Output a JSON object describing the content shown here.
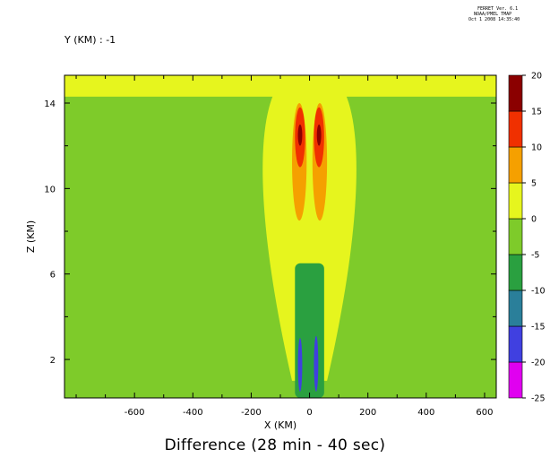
{
  "header": {
    "line1": "FERRET Ver. 6.1",
    "line2": "NOAA/PMEL TMAP",
    "line3": "Oct  1 2008 14:35:40"
  },
  "slice_label": "Y (KM) : -1",
  "title": "Difference (28 min - 40 sec)",
  "chart_data": {
    "type": "heatmap",
    "title": "Difference (28 min - 40 sec)",
    "xlabel": "X (KM)",
    "ylabel": "Z (KM)",
    "xlim": [
      -840,
      640
    ],
    "ylim": [
      0.2,
      15.3
    ],
    "x_ticks": [
      -600,
      -400,
      -200,
      0,
      200,
      400,
      600
    ],
    "x_tick_labels": [
      "-600",
      "-400",
      "-200",
      "0",
      "200",
      "400",
      "600"
    ],
    "y_ticks": [
      2,
      6,
      10,
      14
    ],
    "y_tick_labels": [
      "2",
      "6",
      "10",
      "14"
    ],
    "colorbar": {
      "levels": [
        -25,
        -20,
        -15,
        -10,
        -5,
        0,
        5,
        10,
        15,
        20
      ],
      "labels": [
        "-25",
        "-20",
        "-15",
        "-10",
        "-5",
        "0",
        "5",
        "10",
        "15",
        "20"
      ],
      "colors": [
        "#e000f0",
        "#4040e0",
        "#2a7f9a",
        "#2aa040",
        "#7ecb2a",
        "#e6f51e",
        "#f5a000",
        "#f03000",
        "#8b0000"
      ]
    },
    "background_value_range": [
      -5,
      0
    ],
    "features": [
      {
        "name": "upper yellow band",
        "value_range": [
          0,
          5
        ],
        "x": [
          -840,
          640
        ],
        "z": [
          14.3,
          15.3
        ]
      },
      {
        "name": "central plume",
        "value_range": [
          0,
          5
        ],
        "x": [
          -200,
          200
        ],
        "z": [
          1,
          15.3
        ]
      },
      {
        "name": "orange core left",
        "value_range": [
          5,
          10
        ],
        "x": [
          -60,
          -10
        ],
        "z": [
          8.5,
          14
        ]
      },
      {
        "name": "orange core right",
        "value_range": [
          5,
          10
        ],
        "x": [
          10,
          60
        ],
        "z": [
          8.5,
          14
        ]
      },
      {
        "name": "red core left",
        "value_range": [
          10,
          15
        ],
        "x": [
          -50,
          -15
        ],
        "z": [
          11,
          13.8
        ]
      },
      {
        "name": "red core right",
        "value_range": [
          10,
          15
        ],
        "x": [
          15,
          50
        ],
        "z": [
          11,
          13.8
        ]
      },
      {
        "name": "max left",
        "value_range": [
          15,
          20
        ],
        "x": [
          -40,
          -25
        ],
        "z": [
          12,
          13
        ]
      },
      {
        "name": "max right",
        "value_range": [
          15,
          20
        ],
        "x": [
          25,
          40
        ],
        "z": [
          12,
          13
        ]
      },
      {
        "name": "lower column",
        "value_range": [
          -10,
          -5
        ],
        "x": [
          -50,
          50
        ],
        "z": [
          0.2,
          6.5
        ]
      },
      {
        "name": "blue core left",
        "value_range": [
          -20,
          -15
        ],
        "x": [
          -40,
          -25
        ],
        "z": [
          0.5,
          3
        ]
      },
      {
        "name": "blue core right",
        "value_range": [
          -20,
          -15
        ],
        "x": [
          15,
          30
        ],
        "z": [
          0.5,
          3.1
        ]
      }
    ]
  }
}
